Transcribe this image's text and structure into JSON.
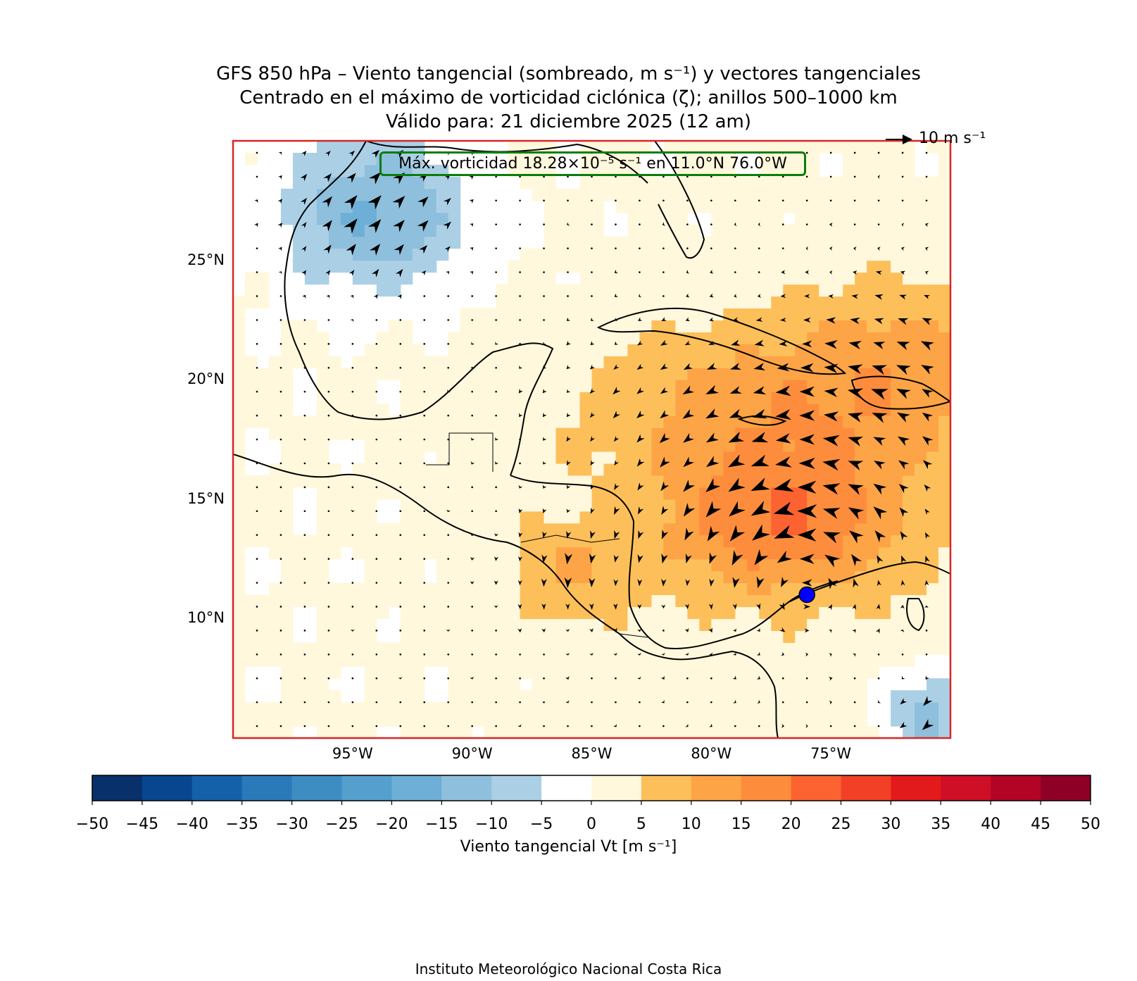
{
  "title": {
    "line1": "GFS 850 hPa – Viento tangencial (sombreado, m s⁻¹) y vectores tangenciales",
    "line2": "Centrado en el máximo de vorticidad ciclónica (ζ); anillos 500–1000 km",
    "line3": "Válido para: 21 diciembre 2025 (12 am)"
  },
  "map": {
    "lon_range": [
      -100,
      -70
    ],
    "lat_range": [
      5,
      30
    ],
    "lat_ticks": [
      {
        "value": 25,
        "label": "25°N"
      },
      {
        "value": 20,
        "label": "20°N"
      },
      {
        "value": 15,
        "label": "15°N"
      },
      {
        "value": 10,
        "label": "10°N"
      }
    ],
    "lon_ticks": [
      {
        "value": -95,
        "label": "95°W"
      },
      {
        "value": -90,
        "label": "90°W"
      },
      {
        "value": -85,
        "label": "85°W"
      },
      {
        "value": -80,
        "label": "80°W"
      },
      {
        "value": -75,
        "label": "75°W"
      }
    ],
    "vorticity_center": {
      "lat": 11.0,
      "lon": -76.0
    },
    "vmax_annotation": "Máx. vorticidad 18.28×10⁻⁵ s⁻¹ en 11.0°N 76.0°W",
    "reference_vector": "10 m s⁻¹",
    "frame_color": "#d62728",
    "center_marker_color": "#0000ff",
    "annotation_box_color": "#0a7d0a"
  },
  "colorbar": {
    "label": "Viento tangencial Vt [m s⁻¹]",
    "ticks": [
      "−50",
      "−45",
      "−40",
      "−35",
      "−30",
      "−25",
      "−20",
      "−15",
      "−10",
      "−5",
      "0",
      "5",
      "10",
      "15",
      "20",
      "25",
      "30",
      "35",
      "40",
      "45",
      "50"
    ],
    "colors": [
      "#08306b",
      "#08478f",
      "#1561a9",
      "#2a7aba",
      "#3d8dc3",
      "#549fcd",
      "#6dafd6",
      "#8ebfdc",
      "#abd0e6",
      "#ffffff",
      "#fff8dc",
      "#fdbf5a",
      "#fda446",
      "#fd8d3c",
      "#fc6330",
      "#f24026",
      "#e31a1c",
      "#ce0f25",
      "#b40426",
      "#8f0026"
    ]
  },
  "footer": "Instituto Meteorológico Nacional Costa Rica"
}
